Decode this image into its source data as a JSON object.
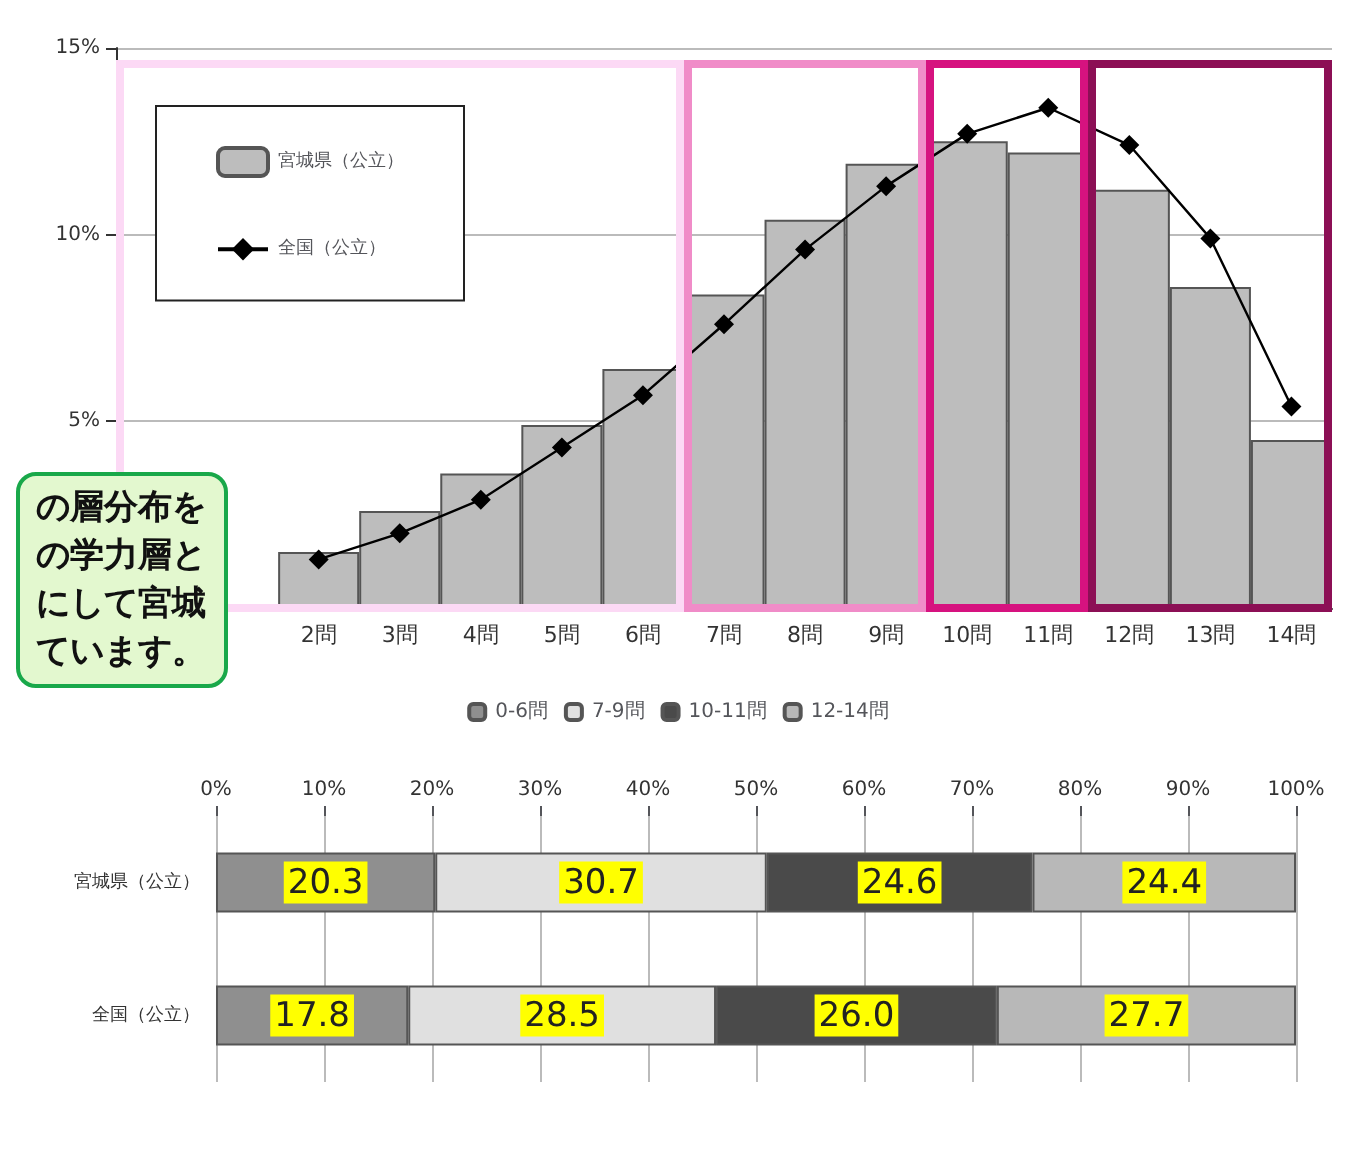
{
  "chart_data": [
    {
      "type": "bar",
      "categories": [
        null,
        null,
        "2問",
        "3問",
        "4問",
        "5問",
        "6問",
        "7問",
        "8問",
        "9問",
        "10問",
        "11問",
        "12問",
        "13問",
        "14問"
      ],
      "series": [
        {
          "name": "宮城県（公立）",
          "color": "#bdbdbd",
          "values": [
            null,
            null,
            1.5,
            2.6,
            3.6,
            4.9,
            6.4,
            8.4,
            10.4,
            11.9,
            12.5,
            12.2,
            11.2,
            8.6,
            4.5
          ]
        },
        {
          "name": "全国（公立）",
          "type": "line",
          "color": "#000000",
          "values": [
            null,
            null,
            1.3,
            2.0,
            2.9,
            4.3,
            5.7,
            7.6,
            9.6,
            11.3,
            12.7,
            13.4,
            12.4,
            9.9,
            5.4
          ]
        }
      ],
      "ylim": [
        0,
        15
      ],
      "yticks": [
        {
          "value": 5,
          "label": "5%"
        },
        {
          "value": 10,
          "label": "10%"
        },
        {
          "value": 15,
          "label": "15%"
        }
      ],
      "grid": "y",
      "legend": "top left",
      "marker": "diamond",
      "annotations": [
        "の層分布をの学力層とにして宮城ています。"
      ]
    },
    {
      "type": "bar",
      "orientation": "horizontal",
      "stacked": true,
      "categories": [
        "宮城県（公立）",
        "全国（公立）"
      ],
      "series": [
        {
          "name": "0-6問",
          "color": "#8f8f8f",
          "values": [
            20.3,
            17.8
          ],
          "value_labels": [
            "20.3",
            "17.8"
          ]
        },
        {
          "name": "7-9問",
          "color": "#e0e0e0",
          "values": [
            30.7,
            28.5
          ],
          "value_labels": [
            "30.7",
            "28.5"
          ]
        },
        {
          "name": "10-11問",
          "color": "#4a4a4a",
          "values": [
            24.6,
            26.0
          ],
          "value_labels": [
            "24.6",
            "26.0"
          ]
        },
        {
          "name": "12-14問",
          "color": "#b8b8b8",
          "values": [
            24.4,
            27.7
          ],
          "value_labels": [
            "24.4",
            "27.7"
          ]
        }
      ],
      "xlim": [
        0,
        100
      ],
      "xticks": [
        {
          "value": 0,
          "label": "0%"
        },
        {
          "value": 10,
          "label": "10%"
        },
        {
          "value": 20,
          "label": "20%"
        },
        {
          "value": 30,
          "label": "30%"
        },
        {
          "value": 40,
          "label": "40%"
        },
        {
          "value": 50,
          "label": "50%"
        },
        {
          "value": 60,
          "label": "60%"
        },
        {
          "value": 70,
          "label": "70%"
        },
        {
          "value": 80,
          "label": "80%"
        },
        {
          "value": 90,
          "label": "90%"
        },
        {
          "value": 100,
          "label": "100%"
        }
      ],
      "grid": "x",
      "legend": "top"
    }
  ]
}
